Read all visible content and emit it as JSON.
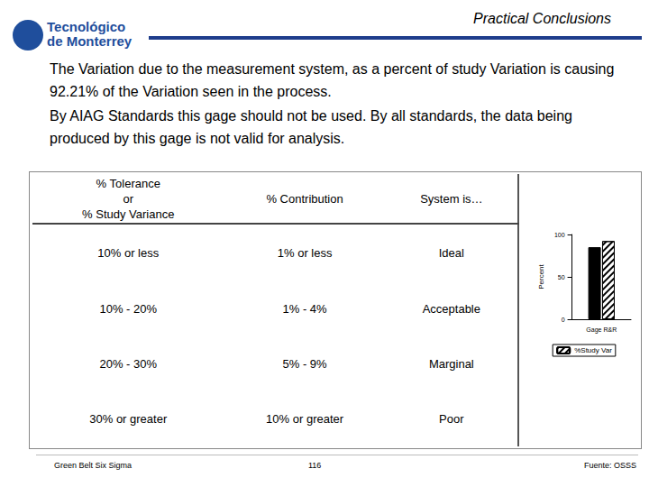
{
  "header": {
    "logo": [
      "Tecnológico",
      "de Monterrey"
    ],
    "title": "Practical Conclusions"
  },
  "paragraphs": [
    "The Variation due to the measurement system, as a percent of study Variation is causing 92.21% of the Variation seen in the process.",
    "By AIAG Standards this gage should not be used.  By all standards, the data being produced by this gage is not valid for analysis."
  ],
  "table": {
    "header": [
      [
        "% Tolerance",
        "or",
        "% Study Variance"
      ],
      [
        "% Contribution"
      ],
      [
        "System is…"
      ]
    ],
    "rows": [
      [
        "10% or less",
        "1% or less",
        "Ideal"
      ],
      [
        "10% - 20%",
        "1% - 4%",
        "Acceptable"
      ],
      [
        "20% - 30%",
        "5% - 9%",
        "Marginal"
      ],
      [
        "30% or greater",
        "10% or greater",
        "Poor"
      ]
    ]
  },
  "chart_data": {
    "type": "bar",
    "categories": [
      "Gage R&R"
    ],
    "series": [
      {
        "color": "#000000",
        "values": [
          85.0
        ]
      },
      {
        "name": "%Study Var",
        "color": "#ffffff",
        "values": [
          92.21
        ]
      }
    ],
    "ylabel": "Percent",
    "ylim": [
      0,
      100
    ],
    "yticks": [
      0,
      50,
      100
    ],
    "legend": "bottom"
  },
  "footer": {
    "left": "Green Belt Six Sigma",
    "page": "116",
    "source": "Fuente: OSSS"
  }
}
